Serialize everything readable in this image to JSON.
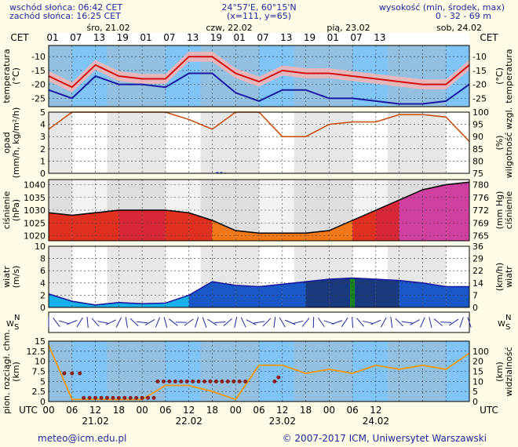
{
  "header": {
    "sunrise": "wschód słońca: 06:42 CET",
    "sunset": "zachód słońca: 16:25 CET",
    "coords": "24°57'E, 60°15'N",
    "grid": "(x=111, y=65)",
    "altitude_title": "wysokość (min, środek, max)",
    "altitude_values": "0 - 32 - 69 m"
  },
  "days_top": [
    "śro, 21.02",
    "czw, 22.02",
    "pią, 23.02",
    "sob, 24.02"
  ],
  "days_bottom": [
    "21.02",
    "22.02",
    "23.02",
    "24.02"
  ],
  "cet_label": "CET",
  "utc_label": "UTC",
  "cet_hours": [
    "01",
    "07",
    "13",
    "19",
    "01",
    "07",
    "13",
    "19",
    "01",
    "07",
    "13",
    "19",
    "01",
    "07",
    "13"
  ],
  "utc_hours": [
    "00",
    "06",
    "12",
    "18",
    "00",
    "06",
    "12",
    "18",
    "00",
    "06",
    "12",
    "18",
    "00",
    "06",
    "12"
  ],
  "footer": {
    "email": "meteo@icm.edu.pl",
    "copyright": "© 2007-2017 ICM, Uniwersytet Warszawski"
  },
  "colors": {
    "background": "#fffbe6",
    "plot_blue": "#7fc4f4",
    "night_grey": "#dedede",
    "temp_red": "#d21010",
    "temp_blue": "#1a1aa0",
    "humidity": "#c84a00",
    "visibility": "#e89a20"
  },
  "chart_data": [
    {
      "type": "line",
      "id": "temperature",
      "ylabel": "temperatura (°C)",
      "ylabel_right": "(°C) temperatura",
      "ylim": [
        -28,
        -6
      ],
      "y_ticks": [
        -25,
        -20,
        -15,
        -10
      ],
      "x_unit": "hours from 2024-02-21 00 UTC",
      "x": [
        0,
        6,
        12,
        18,
        24,
        30,
        36,
        42,
        48,
        54,
        60,
        66,
        72,
        78,
        84,
        90,
        96,
        102,
        108
      ],
      "series": [
        {
          "values": [
            -17,
            -21,
            -13,
            -17,
            -18,
            -18,
            -10,
            -10,
            -16,
            -19,
            -15,
            -16,
            -16,
            -17,
            -18,
            -19,
            -20,
            -20,
            -13
          ]
        },
        {
          "values": [
            -22,
            -25,
            -17,
            -20,
            -20,
            -21,
            -16,
            -16,
            -23,
            -26,
            -22,
            -22,
            -25,
            -25,
            -26,
            -27,
            -27,
            -26,
            -20
          ]
        }
      ]
    },
    {
      "type": "bar",
      "id": "precipitation",
      "ylabel": "opad (mm/h, kg/m²/h)",
      "ylabel_right": "(%) wilgotność wzgl.",
      "ylim": [
        0,
        5
      ],
      "y_ticks": [
        0,
        1,
        2,
        3,
        4,
        5
      ],
      "y2lim": [
        75,
        100
      ],
      "y2_ticks": [
        75,
        80,
        85,
        90,
        95,
        100
      ],
      "series": [
        {
          "values_x": [
            43,
            44,
            45
          ],
          "values": [
            0.1,
            0.1,
            0.05
          ]
        },
        {
          "type": "line",
          "x": [
            0,
            6,
            12,
            18,
            24,
            30,
            36,
            42,
            48,
            54,
            60,
            66,
            72,
            78,
            84,
            90,
            96,
            102,
            108
          ],
          "values": [
            93,
            100,
            100,
            100,
            100,
            100,
            97,
            93,
            100,
            100,
            90,
            90,
            95,
            96,
            96,
            99,
            99,
            98,
            88
          ]
        }
      ]
    },
    {
      "type": "area",
      "id": "pressure",
      "ylabel": "ciśnienie (hPa)",
      "ylabel_right": "(mm Hg) ciśnienie",
      "ylim": [
        1018,
        1042
      ],
      "y_ticks": [
        1020,
        1025,
        1030,
        1035,
        1040
      ],
      "y2_ticks": [
        765,
        769,
        772,
        776,
        780
      ],
      "x": [
        0,
        6,
        12,
        18,
        24,
        30,
        36,
        42,
        48,
        54,
        60,
        66,
        72,
        78,
        84,
        90,
        96,
        102,
        108
      ],
      "series": [
        {
          "values": [
            1029,
            1028,
            1029,
            1030,
            1030,
            1030,
            1029,
            1026,
            1022,
            1021,
            1021,
            1021,
            1022,
            1026,
            1030,
            1034,
            1038,
            1040,
            1041
          ]
        }
      ]
    },
    {
      "type": "line",
      "id": "wind",
      "ylabel": "wiatr (m/s)",
      "ylabel_right": "(km/h) wiatr",
      "ylim": [
        0,
        10
      ],
      "y_ticks": [
        0,
        2,
        4,
        6,
        8,
        10
      ],
      "y2_ticks": [
        0,
        7,
        14,
        22,
        29,
        36
      ],
      "x": [
        0,
        6,
        12,
        18,
        24,
        30,
        36,
        42,
        48,
        54,
        60,
        66,
        72,
        78,
        84,
        90,
        96,
        102,
        108
      ],
      "series": [
        {
          "values": [
            2.2,
            1.0,
            0.4,
            0.8,
            0.6,
            0.7,
            2.0,
            4.2,
            3.6,
            3.4,
            3.8,
            4.2,
            4.6,
            4.8,
            4.6,
            4.4,
            4.0,
            3.4,
            3.4
          ]
        }
      ]
    },
    {
      "type": "scatter",
      "id": "visibility",
      "ylabel": "pion. rozciągł. chm. (km)",
      "ylabel_right": "(km) widzialność",
      "ylim": [
        0,
        15
      ],
      "y_ticks": [
        0.0,
        2.5,
        5.0,
        7.5,
        10.0,
        12.5,
        15.0
      ],
      "y2_ticks": [
        0,
        5,
        10,
        15,
        20,
        100
      ],
      "x": [
        0,
        6,
        12,
        18,
        24,
        30,
        36,
        42,
        48,
        54,
        60,
        66,
        72,
        78,
        84,
        90,
        96,
        102,
        108
      ],
      "series": [
        {
          "values": [
            14,
            0.5,
            0.5,
            0.5,
            0.5,
            4,
            4,
            2.5,
            0.5,
            9,
            9,
            7,
            8,
            7,
            9,
            8,
            9,
            8,
            12
          ]
        }
      ]
    }
  ]
}
